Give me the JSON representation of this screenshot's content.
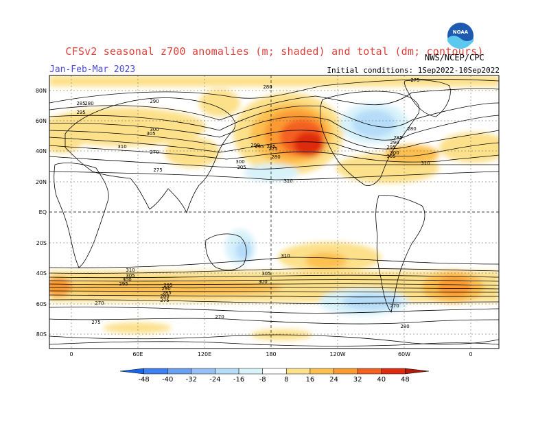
{
  "header": {
    "title": "CFSv2 seasonal z700 anomalies (m; shaded) and total (dm; contours)",
    "period": "Jan-Feb-Mar 2023",
    "initial_conditions": "Initial conditions: 1Sep2022-10Sep2022",
    "agency": "NWS/NCEP/CPC",
    "logo_text": "NOAA"
  },
  "axes": {
    "lat_labels": [
      "80N",
      "60N",
      "40N",
      "20N",
      "EQ",
      "20S",
      "40S",
      "60S",
      "80S"
    ],
    "lon_labels": [
      "0",
      "60E",
      "120E",
      "180",
      "120W",
      "60W",
      "0"
    ]
  },
  "colorbar": {
    "labels": [
      "-48",
      "-40",
      "-32",
      "-24",
      "-16",
      "-8",
      "8",
      "16",
      "24",
      "32",
      "40",
      "48"
    ],
    "colors": [
      "#1a64e6",
      "#3d80ef",
      "#6aa0f2",
      "#97c0f6",
      "#b5dcf8",
      "#d8f2fa",
      "#ffffff",
      "#fce08a",
      "#fdc050",
      "#fb9a30",
      "#f46020",
      "#de2a10",
      "#b01a0a"
    ]
  },
  "contour_labels": [
    "275",
    "280",
    "285",
    "290",
    "295",
    "300",
    "305",
    "310",
    "270",
    "275",
    "280",
    "285",
    "290",
    "295",
    "300",
    "305",
    "310",
    "310",
    "305",
    "300",
    "295",
    "290",
    "285",
    "280",
    "275",
    "270",
    "280",
    "275",
    "270",
    "280",
    "295",
    "300",
    "305",
    "310",
    "310",
    "305",
    "300",
    "295",
    "290",
    "285",
    "280",
    "275",
    "270"
  ]
}
